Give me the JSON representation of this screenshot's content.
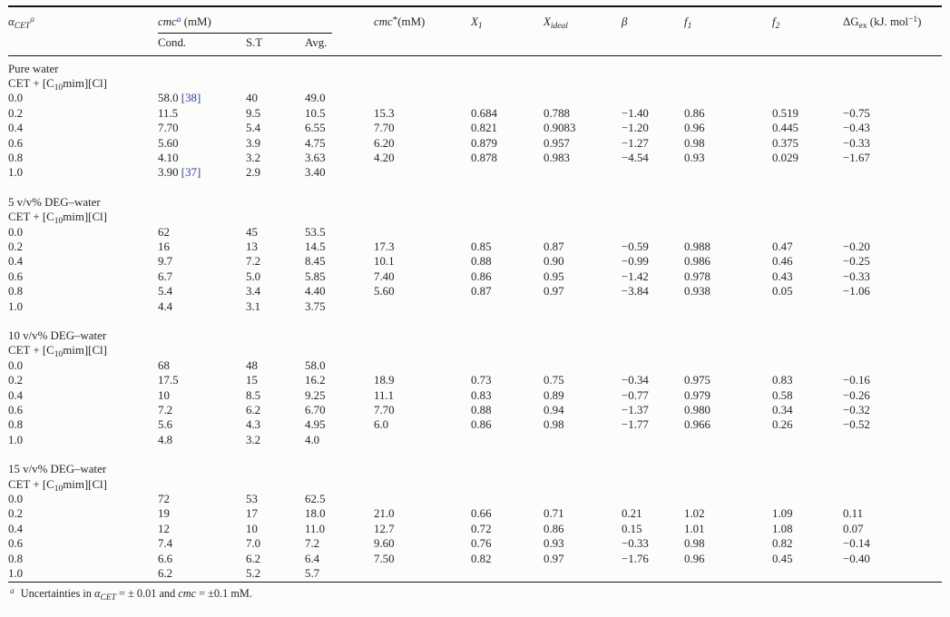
{
  "page": {
    "background": "#fcfcfb",
    "text_color": "#262626",
    "citation_color": "#2e3e96",
    "rule_color": "#141414"
  },
  "header": {
    "alpha": {
      "base": "α",
      "sub": "CET",
      "sup": "a"
    },
    "cmc_group": {
      "base": "cmc",
      "sup": "a",
      "unit": " (mM)"
    },
    "subheaders": [
      "Cond.",
      "S.T",
      "Avg."
    ],
    "cmc_star": {
      "base": "cmc",
      "sup": "*",
      "unit": "(mM)"
    },
    "x1": {
      "base": "X",
      "sub": "1"
    },
    "xideal": {
      "base": "X",
      "sub": "ideal"
    },
    "beta": "β",
    "f1": {
      "base": "f",
      "sub": "1"
    },
    "f2": {
      "base": "f",
      "sub": "2"
    },
    "dgex": {
      "base": "ΔG",
      "sub": "ex",
      "unit_pre": " (kJ. mol",
      "unit_sup": "−1",
      "unit_post": ")"
    }
  },
  "system": {
    "pre": "CET + [C",
    "sub": "10",
    "post": "mim][Cl]"
  },
  "sections": [
    {
      "solvent": "Pure water",
      "rows": [
        {
          "alpha": "0.0",
          "cond": "58.0",
          "cond_ref": "[38]",
          "st": "40",
          "avg": "49.0",
          "cmc_star": "",
          "x1": "",
          "xideal": "",
          "beta": "",
          "f1": "",
          "f2": "",
          "dgex": ""
        },
        {
          "alpha": "0.2",
          "cond": "11.5",
          "st": "9.5",
          "avg": "10.5",
          "cmc_star": "15.3",
          "x1": "0.684",
          "xideal": "0.788",
          "beta": "−1.40",
          "f1": "0.86",
          "f2": "0.519",
          "dgex": "−0.75"
        },
        {
          "alpha": "0.4",
          "cond": "7.70",
          "st": "5.4",
          "avg": "6.55",
          "cmc_star": "7.70",
          "x1": "0.821",
          "xideal": "0.9083",
          "beta": "−1.20",
          "f1": "0.96",
          "f2": "0.445",
          "dgex": "−0.43"
        },
        {
          "alpha": "0.6",
          "cond": "5.60",
          "st": "3.9",
          "avg": "4.75",
          "cmc_star": "6.20",
          "x1": "0.879",
          "xideal": "0.957",
          "beta": "−1.27",
          "f1": "0.98",
          "f2": "0.375",
          "dgex": "−0.33"
        },
        {
          "alpha": "0.8",
          "cond": "4.10",
          "st": "3.2",
          "avg": "3.63",
          "cmc_star": "4.20",
          "x1": "0.878",
          "xideal": "0.983",
          "beta": "−4.54",
          "f1": "0.93",
          "f2": "0.029",
          "dgex": "−1.67"
        },
        {
          "alpha": "1.0",
          "cond": "3.90",
          "cond_ref": "[37]",
          "st": "2.9",
          "avg": "3.40",
          "cmc_star": "",
          "x1": "",
          "xideal": "",
          "beta": "",
          "f1": "",
          "f2": "",
          "dgex": ""
        }
      ]
    },
    {
      "solvent": "5 v/v% DEG–water",
      "rows": [
        {
          "alpha": "0.0",
          "cond": "62",
          "st": "45",
          "avg": "53.5",
          "cmc_star": "",
          "x1": "",
          "xideal": "",
          "beta": "",
          "f1": "",
          "f2": "",
          "dgex": ""
        },
        {
          "alpha": "0.2",
          "cond": "16",
          "st": "13",
          "avg": "14.5",
          "cmc_star": "17.3",
          "x1": "0.85",
          "xideal": "0.87",
          "beta": "−0.59",
          "f1": "0.988",
          "f2": "0.47",
          "dgex": "−0.20"
        },
        {
          "alpha": "0.4",
          "cond": "9.7",
          "st": "7.2",
          "avg": "8.45",
          "cmc_star": "10.1",
          "x1": "0.88",
          "xideal": "0.90",
          "beta": "−0.99",
          "f1": "0.986",
          "f2": "0.46",
          "dgex": "−0.25"
        },
        {
          "alpha": "0.6",
          "cond": "6.7",
          "st": "5.0",
          "avg": "5.85",
          "cmc_star": "7.40",
          "x1": "0.86",
          "xideal": "0.95",
          "beta": "−1.42",
          "f1": "0.978",
          "f2": "0.43",
          "dgex": "−0.33"
        },
        {
          "alpha": "0.8",
          "cond": "5.4",
          "st": "3.4",
          "avg": "4.40",
          "cmc_star": "5.60",
          "x1": "0.87",
          "xideal": "0.97",
          "beta": "−3.84",
          "f1": "0.938",
          "f2": "0.05",
          "dgex": "−1.06"
        },
        {
          "alpha": "1.0",
          "cond": "4.4",
          "st": "3.1",
          "avg": "3.75",
          "cmc_star": "",
          "x1": "",
          "xideal": "",
          "beta": "",
          "f1": "",
          "f2": "",
          "dgex": ""
        }
      ]
    },
    {
      "solvent": "10 v/v% DEG–water",
      "rows": [
        {
          "alpha": "0.0",
          "cond": "68",
          "st": "48",
          "avg": "58.0",
          "cmc_star": "",
          "x1": "",
          "xideal": "",
          "beta": "",
          "f1": "",
          "f2": "",
          "dgex": ""
        },
        {
          "alpha": "0.2",
          "cond": "17.5",
          "st": "15",
          "avg": "16.2",
          "cmc_star": "18.9",
          "x1": "0.73",
          "xideal": "0.75",
          "beta": "−0.34",
          "f1": "0.975",
          "f2": "0.83",
          "dgex": "−0.16"
        },
        {
          "alpha": "0.4",
          "cond": "10",
          "st": "8.5",
          "avg": "9.25",
          "cmc_star": "11.1",
          "x1": "0.83",
          "xideal": "0.89",
          "beta": "−0.77",
          "f1": "0.979",
          "f2": "0.58",
          "dgex": "−0.26"
        },
        {
          "alpha": "0.6",
          "cond": "7.2",
          "st": "6.2",
          "avg": "6.70",
          "cmc_star": "7.70",
          "x1": "0.88",
          "xideal": "0.94",
          "beta": "−1.37",
          "f1": "0.980",
          "f2": "0.34",
          "dgex": "−0.32"
        },
        {
          "alpha": "0.8",
          "cond": "5.6",
          "st": "4.3",
          "avg": "4.95",
          "cmc_star": "6.0",
          "x1": "0.86",
          "xideal": "0.98",
          "beta": "−1.77",
          "f1": "0.966",
          "f2": "0.26",
          "dgex": "−0.52"
        },
        {
          "alpha": "1.0",
          "cond": "4.8",
          "st": "3.2",
          "avg": "4.0",
          "cmc_star": "",
          "x1": "",
          "xideal": "",
          "beta": "",
          "f1": "",
          "f2": "",
          "dgex": ""
        }
      ]
    },
    {
      "solvent": "15 v/v% DEG–water",
      "rows": [
        {
          "alpha": "0.0",
          "cond": "72",
          "st": "53",
          "avg": "62.5",
          "cmc_star": "",
          "x1": "",
          "xideal": "",
          "beta": "",
          "f1": "",
          "f2": "",
          "dgex": ""
        },
        {
          "alpha": "0.2",
          "cond": "19",
          "st": "17",
          "avg": "18.0",
          "cmc_star": "21.0",
          "x1": "0.66",
          "xideal": "0.71",
          "beta": "0.21",
          "f1": "1.02",
          "f2": "1.09",
          "dgex": "0.11"
        },
        {
          "alpha": "0.4",
          "cond": "12",
          "st": "10",
          "avg": "11.0",
          "cmc_star": "12.7",
          "x1": "0.72",
          "xideal": "0.86",
          "beta": "0.15",
          "f1": "1.01",
          "f2": "1.08",
          "dgex": "0.07"
        },
        {
          "alpha": "0.6",
          "cond": "7.4",
          "st": "7.0",
          "avg": "7.2",
          "cmc_star": "9.60",
          "x1": "0.76",
          "xideal": "0.93",
          "beta": "−0.33",
          "f1": "0.98",
          "f2": "0.82",
          "dgex": "−0.14"
        },
        {
          "alpha": "0.8",
          "cond": "6.6",
          "st": "6.2",
          "avg": "6.4",
          "cmc_star": "7.50",
          "x1": "0.82",
          "xideal": "0.97",
          "beta": "−1.76",
          "f1": "0.96",
          "f2": "0.45",
          "dgex": "−0.40"
        },
        {
          "alpha": "1.0",
          "cond": "6.2",
          "st": "5.2",
          "avg": "5.7",
          "cmc_star": "",
          "x1": "",
          "xideal": "",
          "beta": "",
          "f1": "",
          "f2": "",
          "dgex": ""
        }
      ]
    }
  ],
  "footnote": {
    "marker": "a",
    "t1": "Uncertainties in ",
    "alpha": "α",
    "alpha_sub": "CET",
    "t2": " = ± 0.01 and ",
    "cmc": "cmc",
    "t3": " = ±0.1 mM."
  }
}
